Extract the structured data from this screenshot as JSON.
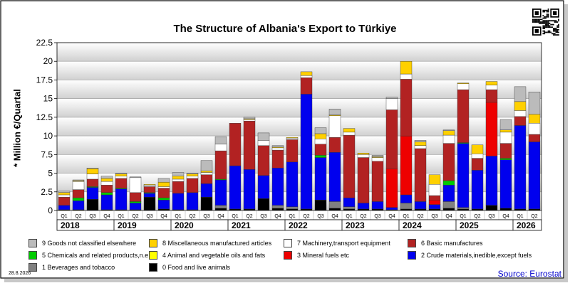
{
  "header": {
    "title": "The Structure of Albania's Export to Türkiye"
  },
  "footer": {
    "date": "28.8.2026",
    "source": "Source: Eurostat"
  },
  "chart_data": {
    "type": "bar",
    "stacked": true,
    "title": "The Structure of Albania's Export to Türkiye",
    "ylabel": "* Million €/Quartal",
    "xlabel": "",
    "ylim": [
      0,
      22.5
    ],
    "yticks": [
      "0",
      "2.5",
      "5",
      "7.5",
      "10",
      "12.5",
      "15",
      "17.5",
      "20",
      "22.5"
    ],
    "grid": true,
    "legend_position": "bottom",
    "categories": [
      "Q1",
      "Q2",
      "Q3",
      "Q4",
      "Q1",
      "Q2",
      "Q3",
      "Q4",
      "Q1",
      "Q2",
      "Q3",
      "Q4",
      "Q1",
      "Q2",
      "Q3",
      "Q4",
      "Q1",
      "Q2",
      "Q3",
      "Q4",
      "Q1",
      "Q2",
      "Q3",
      "Q4",
      "Q1",
      "Q2",
      "Q3",
      "Q4",
      "Q1",
      "Q2",
      "Q3",
      "Q4",
      "Q1",
      "Q2"
    ],
    "years": [
      {
        "label": "2018",
        "quarters": 4
      },
      {
        "label": "2019",
        "quarters": 4
      },
      {
        "label": "2020",
        "quarters": 4
      },
      {
        "label": "2021",
        "quarters": 4
      },
      {
        "label": "2022",
        "quarters": 4
      },
      {
        "label": "2023",
        "quarters": 4
      },
      {
        "label": "2024",
        "quarters": 4
      },
      {
        "label": "2025",
        "quarters": 4
      },
      {
        "label": "2026",
        "quarters": 2
      }
    ],
    "series": [
      {
        "name": "0 Food and live animals",
        "color": "#000000",
        "values": [
          0.1,
          0.1,
          1.5,
          0.1,
          0.1,
          0.1,
          1.8,
          0.2,
          0.1,
          0.1,
          1.8,
          0.3,
          0.2,
          0.2,
          1.6,
          0.3,
          0.2,
          0.2,
          1.4,
          0.3,
          0.2,
          0.2,
          0.2,
          0.1,
          0.2,
          0.2,
          0.2,
          0.3,
          0.2,
          0.2,
          0.7,
          0.3,
          0.2,
          0.2
        ]
      },
      {
        "name": "1 Beverages and tobacco",
        "color": "#808080",
        "values": [
          0,
          0,
          0,
          0,
          0,
          0,
          0,
          0,
          0,
          0,
          0,
          0.4,
          0,
          0,
          0,
          0.4,
          0.3,
          0,
          0,
          0.9,
          0.3,
          0,
          0,
          0,
          0.8,
          0,
          0,
          0.9,
          0.2,
          0,
          0,
          0,
          0,
          0
        ]
      },
      {
        "name": "2 Crude materials,inedible,except fuels",
        "color": "#0000ee",
        "values": [
          0.6,
          1.2,
          1.6,
          2.0,
          2.8,
          0.9,
          0.5,
          1.2,
          2.2,
          2.3,
          1.8,
          3.4,
          5.8,
          5.3,
          3.1,
          5.0,
          6.0,
          15.4,
          5.7,
          6.6,
          1.2,
          0.8,
          1.0,
          0.3,
          1.1,
          1.0,
          0.6,
          2.2,
          8.6,
          5.2,
          6.6,
          6.5,
          11.2,
          9.0
        ]
      },
      {
        "name": "3 Mineral fuels etc",
        "color": "#ee0000",
        "values": [
          0,
          0,
          0,
          0,
          0,
          0,
          0,
          0,
          0,
          0,
          0,
          0,
          0,
          0,
          0,
          0,
          0,
          0,
          0,
          0,
          0,
          0,
          0,
          5.2,
          7.9,
          0,
          0.6,
          0,
          0,
          0,
          7.2,
          0,
          0,
          0
        ]
      },
      {
        "name": "4 Animal and vegetable oils and fats",
        "color": "#ffff00",
        "values": [
          0,
          0,
          0,
          0,
          0,
          0,
          0,
          0,
          0,
          0,
          0,
          0,
          0,
          0,
          0,
          0,
          0,
          0,
          0,
          0,
          0,
          0,
          0,
          0,
          0,
          0,
          0,
          0,
          0,
          0,
          0,
          0,
          0,
          0
        ]
      },
      {
        "name": "5 Chemicals and related products,n.e.s.",
        "color": "#00cc00",
        "values": [
          0,
          0.4,
          0.1,
          0.3,
          0.1,
          0.2,
          0.1,
          0.3,
          0,
          0,
          0,
          0.1,
          0,
          0,
          0,
          0,
          0,
          0,
          0.3,
          0,
          0,
          0,
          0,
          0,
          0,
          0,
          0,
          0.6,
          0.1,
          0,
          0,
          0.2,
          0,
          0
        ]
      },
      {
        "name": "6 Basic manufactures",
        "color": "#b22222",
        "values": [
          1.1,
          1.1,
          1.0,
          1.0,
          1.3,
          1.2,
          0.8,
          1.3,
          1.6,
          1.9,
          1.2,
          3.8,
          5.7,
          6.5,
          4.0,
          2.4,
          3.0,
          2.2,
          1.5,
          2.0,
          8.4,
          6.1,
          5.4,
          7.9,
          7.6,
          7.1,
          0.6,
          5.0,
          7.1,
          1.6,
          1.7,
          2.0,
          1.2,
          1.0
        ]
      },
      {
        "name": "7 Machinery,transport equipment",
        "color": "#ffffff",
        "values": [
          0.3,
          1.1,
          0.7,
          0.5,
          0.3,
          2.0,
          0.2,
          0.2,
          0.3,
          0.3,
          0.3,
          0.9,
          0,
          0.2,
          0.7,
          0.3,
          0.2,
          0.3,
          0.7,
          2.9,
          0.4,
          0.4,
          0.5,
          1.5,
          0.7,
          0.4,
          1.5,
          1.1,
          0.8,
          0.6,
          0.6,
          1.5,
          0.8,
          1.5
        ]
      },
      {
        "name": "8 Miscellaneous manufactured articles",
        "color": "#ffd000",
        "values": [
          0.3,
          0.1,
          0.7,
          0.4,
          0.3,
          0,
          0.1,
          0.6,
          0.4,
          0.3,
          0.2,
          0,
          0,
          0.1,
          0,
          0.1,
          0.1,
          0.5,
          0.7,
          0.1,
          0.5,
          0.2,
          0.1,
          0,
          1.7,
          0.5,
          1.3,
          0.6,
          0.1,
          1.2,
          0.5,
          0.3,
          1.2,
          1.2
        ]
      },
      {
        "name": "9 Goods not classified elsewhere",
        "color": "#bbbbbb",
        "values": [
          0.2,
          0.1,
          0.1,
          0.3,
          0.1,
          0.1,
          0,
          0.5,
          0.5,
          0.1,
          1.4,
          1.0,
          0,
          0.2,
          1.0,
          0.2,
          0,
          0,
          0.8,
          0.8,
          0,
          0,
          0.2,
          0.2,
          0,
          0.2,
          0,
          0.1,
          0,
          0,
          0,
          1.4,
          2.0,
          3.0
        ]
      }
    ]
  }
}
